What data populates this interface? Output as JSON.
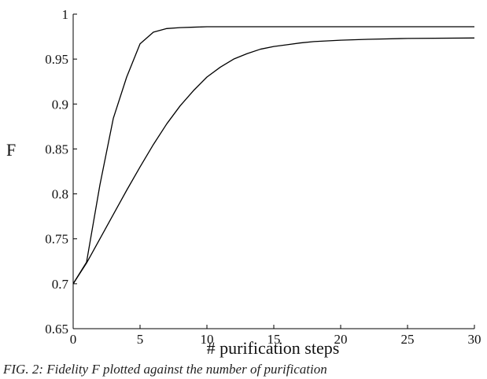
{
  "chart_data": {
    "type": "line",
    "title": "",
    "xlabel": "# purification steps",
    "ylabel": "F",
    "xlim": [
      0,
      30
    ],
    "ylim": [
      0.65,
      1.0
    ],
    "xticks": [
      0,
      5,
      10,
      15,
      20,
      25,
      30
    ],
    "yticks": [
      0.65,
      0.7,
      0.75,
      0.8,
      0.85,
      0.9,
      0.95,
      1.0
    ],
    "xtick_labels": [
      "0",
      "5",
      "10",
      "15",
      "20",
      "25",
      "30"
    ],
    "ytick_labels": [
      "0.65",
      "0.7",
      "0.75",
      "0.8",
      "0.85",
      "0.9",
      "0.95",
      "1"
    ],
    "grid": false,
    "legend": "none",
    "line_color": "#000000",
    "series": [
      {
        "x": [
          0,
          1,
          2,
          3,
          4,
          5,
          6,
          7,
          8,
          9,
          10,
          12,
          15,
          20,
          25,
          30
        ],
        "values": [
          0.7,
          0.724,
          0.81,
          0.884,
          0.93,
          0.967,
          0.98,
          0.984,
          0.985,
          0.9855,
          0.986,
          0.986,
          0.986,
          0.986,
          0.986,
          0.986
        ]
      },
      {
        "x": [
          0,
          1,
          2,
          3,
          4,
          5,
          6,
          7,
          8,
          9,
          10,
          11,
          12,
          13,
          14,
          15,
          16,
          17,
          18,
          20,
          22,
          25,
          30
        ],
        "values": [
          0.7,
          0.723,
          0.75,
          0.777,
          0.804,
          0.83,
          0.855,
          0.878,
          0.898,
          0.915,
          0.93,
          0.941,
          0.95,
          0.956,
          0.961,
          0.964,
          0.966,
          0.968,
          0.9695,
          0.971,
          0.972,
          0.973,
          0.9735
        ]
      }
    ]
  },
  "caption": "FIG. 2: Fidelity F plotted against the number of purification"
}
